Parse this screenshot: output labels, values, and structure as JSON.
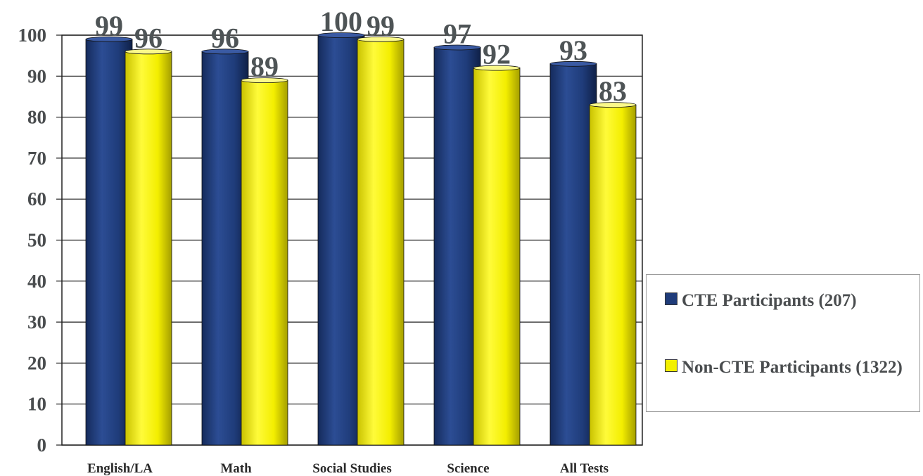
{
  "chart_data": {
    "type": "bar",
    "categories": [
      "English/LA",
      "Math",
      "Social Studies",
      "Science",
      "All Tests"
    ],
    "series": [
      {
        "name": "CTE Participants (207)",
        "values": [
          99,
          96,
          100,
          97,
          93
        ],
        "color": "#1f3c7a"
      },
      {
        "name": "Non-CTE Participants (1322)",
        "values": [
          96,
          89,
          99,
          92,
          83
        ],
        "color": "#f3f000"
      }
    ],
    "ylim": [
      0,
      100
    ],
    "yticks": [
      0,
      10,
      20,
      30,
      40,
      50,
      60,
      70,
      80,
      90,
      100
    ],
    "grid": true,
    "legend_position": "right",
    "bar_style": "3d-cylinder"
  }
}
